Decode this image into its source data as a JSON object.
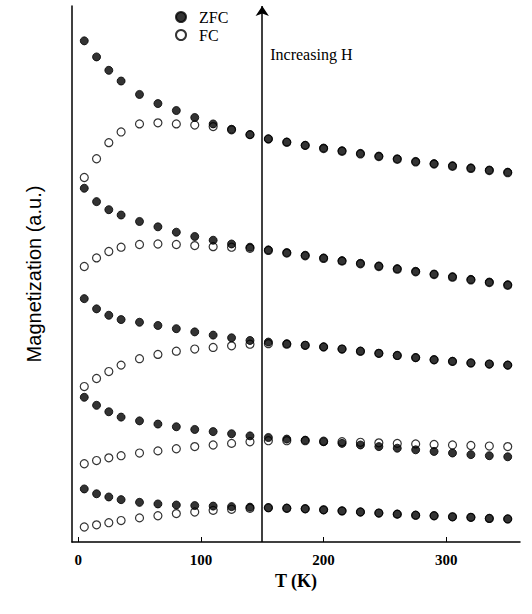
{
  "chart_data": {
    "type": "scatter",
    "x_label": "T (K)",
    "y_label": "Magnetization (a.u.)",
    "x": [
      5,
      15,
      25,
      35,
      50,
      65,
      80,
      95,
      110,
      125,
      140,
      155,
      170,
      185,
      200,
      215,
      230,
      245,
      260,
      275,
      290,
      305,
      320,
      335,
      350
    ],
    "xlim": [
      -5,
      360
    ],
    "xticks": [
      0,
      100,
      200,
      300
    ],
    "ylim": [
      0,
      100
    ],
    "yticks": [],
    "tick_labels": "x",
    "grid": false,
    "legend": "top",
    "annotations": [
      {
        "text": "Increasing H",
        "x": 150
      }
    ],
    "series": [
      {
        "name": "ZFC",
        "color": "#000000",
        "marker": "circle",
        "line_style": "none",
        "values": [
          93.5,
          90.5,
          88,
          86,
          83.5,
          81.8,
          80.5,
          79.2,
          78,
          77,
          76,
          75.2,
          74.6,
          74,
          73.5,
          73,
          72.5,
          72,
          71.5,
          71,
          70.6,
          70.2,
          69.8,
          69.4,
          69
        ]
      },
      {
        "name": "FC",
        "color": "#000000",
        "marker": "open_circle",
        "line_style": "none",
        "values": [
          68,
          71.5,
          74.5,
          76.5,
          78,
          78.2,
          78,
          77.8,
          77.5,
          76.9,
          76,
          75.2,
          74.6,
          74,
          73.4,
          72.9,
          72.4,
          71.9,
          71.4,
          70.9,
          70.5,
          70.1,
          69.7,
          69.3,
          68.9
        ]
      },
      {
        "name": "ZFC",
        "color": "#000000",
        "marker": "circle",
        "line_style": "none",
        "values": [
          66,
          63.5,
          62,
          61,
          59.8,
          58.8,
          57.8,
          57,
          56.3,
          55.6,
          55,
          54.5,
          54,
          53.5,
          53,
          52.5,
          52,
          51.5,
          51,
          50.5,
          50,
          49.5,
          49,
          48.5,
          48
        ]
      },
      {
        "name": "FC",
        "color": "#000000",
        "marker": "open_circle",
        "line_style": "none",
        "values": [
          51.4,
          53,
          54.2,
          55,
          55.5,
          55.6,
          55.5,
          55.3,
          55.1,
          55,
          54.8,
          54.4,
          53.9,
          53.4,
          52.9,
          52.4,
          51.9,
          51.4,
          50.9,
          50.4,
          49.9,
          49.4,
          48.9,
          48.4,
          47.9
        ]
      },
      {
        "name": "ZFC",
        "color": "#000000",
        "marker": "circle",
        "line_style": "none",
        "values": [
          45.4,
          43.5,
          42.3,
          41.5,
          41,
          40.4,
          39.8,
          39.2,
          38.6,
          38.1,
          37.6,
          37.3,
          37,
          36.7,
          36.4,
          36,
          35.6,
          35.2,
          34.8,
          34.4,
          34,
          33.7,
          33.4,
          33.2,
          33
        ]
      },
      {
        "name": "FC",
        "color": "#000000",
        "marker": "open_circle",
        "line_style": "none",
        "values": [
          29,
          30.5,
          31.8,
          33,
          34.2,
          35,
          35.6,
          36,
          36.3,
          36.6,
          36.9,
          37,
          36.9,
          36.7,
          36.4,
          36,
          35.6,
          35.2,
          34.8,
          34.4,
          34,
          33.7,
          33.4,
          33.2,
          33
        ]
      },
      {
        "name": "ZFC",
        "color": "#000000",
        "marker": "circle",
        "line_style": "none",
        "values": [
          27,
          25.5,
          24.3,
          23.3,
          22.6,
          22,
          21.5,
          21,
          20.6,
          20.2,
          19.8,
          19.5,
          19.2,
          19,
          18.7,
          18.4,
          18.1,
          17.8,
          17.5,
          17.2,
          16.9,
          16.6,
          16.3,
          16.1,
          15.9
        ]
      },
      {
        "name": "FC",
        "color": "#000000",
        "marker": "open_circle",
        "line_style": "none",
        "values": [
          14.6,
          15.2,
          15.7,
          16.1,
          16.6,
          17,
          17.4,
          17.8,
          18.1,
          18.4,
          18.7,
          18.9,
          18.9,
          18.9,
          18.8,
          18.7,
          18.6,
          18.5,
          18.4,
          18.3,
          18.2,
          18.1,
          18,
          17.9,
          17.8
        ]
      },
      {
        "name": "ZFC",
        "color": "#000000",
        "marker": "circle",
        "line_style": "none",
        "values": [
          9.9,
          9,
          8.4,
          7.9,
          7.4,
          7.1,
          6.9,
          6.8,
          6.7,
          6.6,
          6.5,
          6.4,
          6.3,
          6.2,
          6,
          5.8,
          5.6,
          5.4,
          5.2,
          5,
          4.9,
          4.7,
          4.6,
          4.4,
          4.3
        ]
      },
      {
        "name": "FC",
        "color": "#000000",
        "marker": "open_circle",
        "line_style": "none",
        "values": [
          2.8,
          3.2,
          3.6,
          4,
          4.5,
          4.9,
          5.3,
          5.6,
          5.9,
          6.1,
          6.3,
          6.4,
          6.3,
          6.2,
          6,
          5.8,
          5.6,
          5.4,
          5.2,
          5,
          4.9,
          4.7,
          4.6,
          4.4,
          4.3
        ]
      }
    ]
  }
}
